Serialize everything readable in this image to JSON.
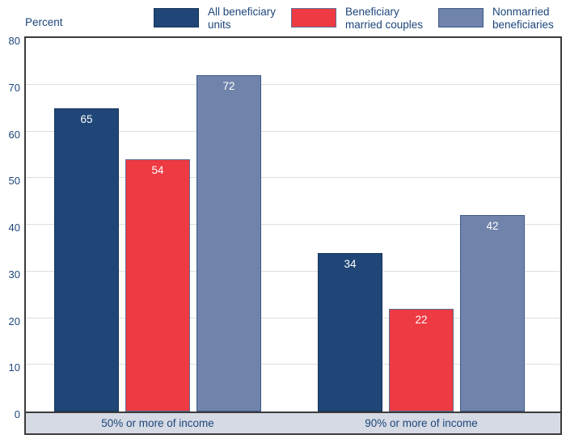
{
  "chart_data": {
    "type": "bar",
    "title": "",
    "ylabel": "Percent",
    "xlabel": "",
    "ylim": [
      0,
      80
    ],
    "yticks": [
      0,
      10,
      20,
      30,
      40,
      50,
      60,
      70,
      80
    ],
    "gridlines": [
      10,
      20,
      30,
      40,
      50,
      60,
      70
    ],
    "grid": true,
    "legend_position": "top",
    "value_labels": true,
    "categories": [
      "50% or more of income",
      "90% or more of income"
    ],
    "series": [
      {
        "name": "All beneficiary units",
        "values": [
          65,
          34
        ],
        "color": "#1f4677",
        "border": "#17345c"
      },
      {
        "name": "Beneficiary married couples",
        "values": [
          54,
          22
        ],
        "color": "#ee3a43",
        "border": "#5d6e92"
      },
      {
        "name": "Nonmarried beneficiaries",
        "values": [
          72,
          42
        ],
        "color": "#7083ab",
        "border": "#3e5a8a"
      }
    ]
  },
  "legend": {
    "items": [
      {
        "lines": [
          "All beneficiary",
          "units"
        ],
        "color": "#1f4677",
        "border": "#17345c"
      },
      {
        "lines": [
          "Beneficiary",
          "married couples"
        ],
        "color": "#ee3a43",
        "border": "#5d6e92"
      },
      {
        "lines": [
          "Nonmarried",
          "beneficiaries"
        ],
        "color": "#7083ab",
        "border": "#3e5a8a"
      }
    ]
  },
  "colors": {
    "text_navy": "#1c4679",
    "grid": "#dedede",
    "plot_border": "#3c3c3c",
    "band_bg": "#d6dae4",
    "value_label": "#ffffff",
    "background": "#ffffff"
  }
}
